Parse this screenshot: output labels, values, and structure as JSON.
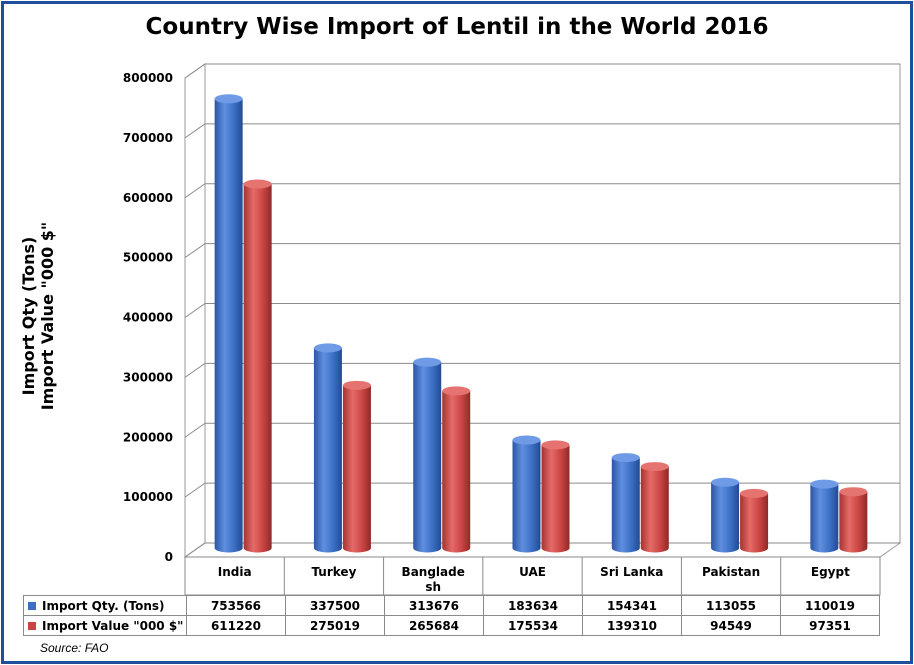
{
  "chart_data": {
    "type": "bar",
    "title": "Country Wise Import of Lentil in the World 2016",
    "ylabel_lines": [
      "Import Qty (Tons)",
      "Import Value \"000 $\""
    ],
    "categories": [
      "India",
      "Turkey",
      "Banglade sh",
      "UAE",
      "Sri Lanka",
      "Pakistan",
      "Egypt"
    ],
    "series": [
      {
        "name": "Import Qty. (Tons)",
        "color": "#3b6fc4",
        "values": [
          753566,
          337500,
          313676,
          183634,
          154341,
          113055,
          110019
        ]
      },
      {
        "name": "Import Value \"000 $\"",
        "color": "#c94442",
        "values": [
          611220,
          275019,
          265684,
          175534,
          139310,
          94549,
          97351
        ]
      }
    ],
    "ylim": [
      0,
      800000
    ],
    "yticks": [
      "0",
      "100000",
      "200000",
      "300000",
      "400000",
      "500000",
      "600000",
      "700000",
      "800000"
    ],
    "grid": true,
    "three_d": true,
    "legend": "data-table-below"
  },
  "table": {
    "rows": [
      {
        "label": "Import Qty. (Tons)",
        "color": "#3b6fc4",
        "values": [
          "753566",
          "337500",
          "313676",
          "183634",
          "154341",
          "113055",
          "110019"
        ]
      },
      {
        "label": "Import Value \"000 $\"",
        "color": "#c94442",
        "values": [
          "611220",
          "275019",
          "265684",
          "175534",
          "139310",
          "94549",
          "97351"
        ]
      }
    ]
  },
  "source": "Source: FAO",
  "frame_color": "#1f4e9a"
}
